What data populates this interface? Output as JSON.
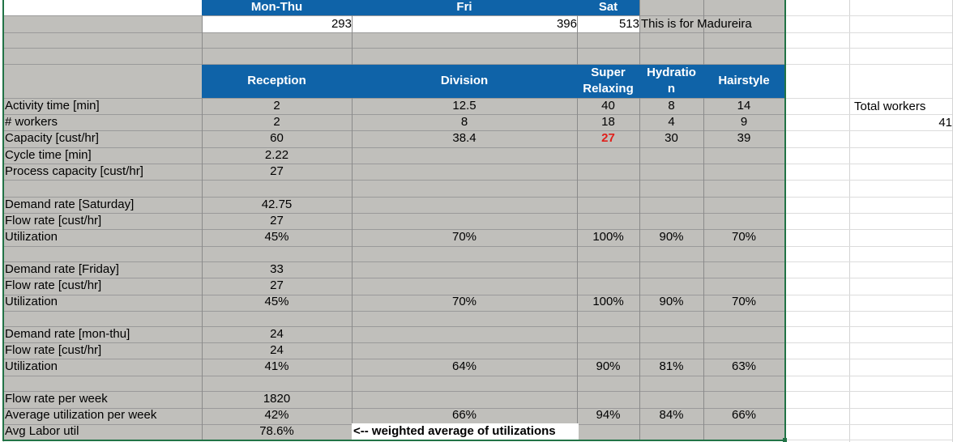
{
  "top_header": {
    "mon_thu": "Mon-Thu",
    "fri": "Fri",
    "sat": "Sat"
  },
  "top_values": {
    "mon_thu": "293",
    "fri": "396",
    "sat": "513",
    "note": "This is for Madureira"
  },
  "col_headers": {
    "reception": "Reception",
    "division": "Division",
    "super_relaxing": [
      "Super",
      "Relaxing"
    ],
    "hydration": [
      "Hydratio",
      "n"
    ],
    "hairstyle": "Hairstyle"
  },
  "rows": {
    "activity_time": {
      "label": "Activity time [min]",
      "reception": "2",
      "division": "12.5",
      "super": "40",
      "hydration": "8",
      "hairstyle": "14"
    },
    "workers": {
      "label": "# workers",
      "reception": "2",
      "division": "8",
      "super": "18",
      "hydration": "4",
      "hairstyle": "9"
    },
    "capacity": {
      "label": "Capacity [cust/hr]",
      "reception": "60",
      "division": "38.4",
      "super": "27",
      "hydration": "30",
      "hairstyle": "39"
    },
    "cycle_time": {
      "label": "Cycle time [min]",
      "reception": "2.22"
    },
    "process_capacity": {
      "label": "Process capacity [cust/hr]",
      "reception": "27"
    },
    "demand_sat": {
      "label": "Demand rate [Saturday]",
      "reception": "42.75"
    },
    "flow_sat": {
      "label": "Flow rate [cust/hr]",
      "reception": "27"
    },
    "util_sat": {
      "label": "Utilization",
      "reception": "45%",
      "division": "70%",
      "super": "100%",
      "hydration": "90%",
      "hairstyle": "70%"
    },
    "demand_fri": {
      "label": "Demand rate [Friday]",
      "reception": "33"
    },
    "flow_fri": {
      "label": "Flow rate [cust/hr]",
      "reception": "27"
    },
    "util_fri": {
      "label": "Utilization",
      "reception": "45%",
      "division": "70%",
      "super": "100%",
      "hydration": "90%",
      "hairstyle": "70%"
    },
    "demand_mt": {
      "label": "Demand rate [mon-thu]",
      "reception": "24"
    },
    "flow_mt": {
      "label": "Flow rate [cust/hr]",
      "reception": "24"
    },
    "util_mt": {
      "label": "Utilization",
      "reception": "41%",
      "division": "64%",
      "super": "90%",
      "hydration": "81%",
      "hairstyle": "63%"
    },
    "flow_week": {
      "label": "Flow rate per week",
      "reception": "1820"
    },
    "avg_util_week": {
      "label": "Average utilization per week",
      "reception": "42%",
      "division": "66%",
      "super": "94%",
      "hydration": "84%",
      "hairstyle": "66%"
    },
    "avg_labor": {
      "label": "Avg Labor util",
      "reception": "78.6%",
      "note": "<-- weighted average of utilizations"
    }
  },
  "side": {
    "total_workers_label": "Total workers",
    "total_workers_value": "41"
  },
  "colors": {
    "header_blue": "#0f63a8",
    "table_gray": "#c0bfbb",
    "highlight_red": "#e0201b",
    "selection_green": "#217346"
  }
}
